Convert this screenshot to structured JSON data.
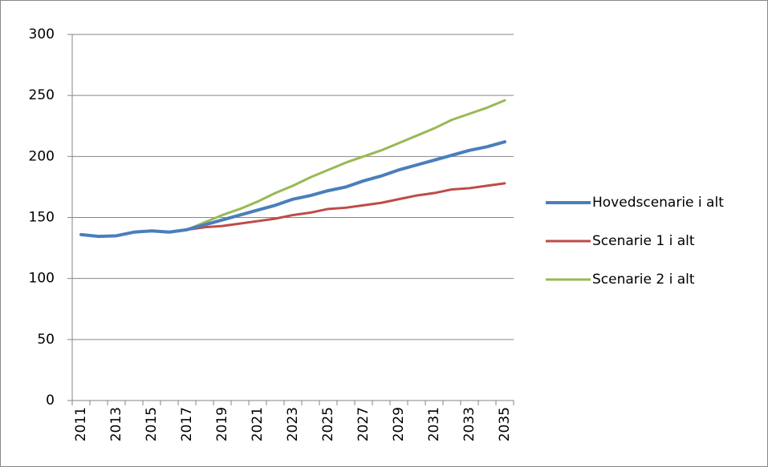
{
  "chart_data": {
    "type": "line",
    "categories": [
      "2011",
      null,
      "2013",
      null,
      "2015",
      null,
      "2017",
      null,
      "2019",
      null,
      "2021",
      null,
      "2023",
      null,
      "2025",
      null,
      "2027",
      null,
      "2029",
      null,
      "2031",
      null,
      "2033",
      null,
      "2035"
    ],
    "series": [
      {
        "name": "Hovedscenarie i alt",
        "color": "#4a7ebb",
        "values": [
          136,
          134.5,
          135,
          138,
          139,
          138,
          140,
          144,
          148,
          152,
          156,
          160,
          165,
          168,
          172,
          175,
          180,
          184,
          189,
          193,
          197,
          201,
          205,
          208,
          212
        ]
      },
      {
        "name": "Scenarie 1 i alt",
        "color": "#be4b48",
        "values": [
          null,
          null,
          null,
          null,
          null,
          null,
          140,
          142,
          143,
          145,
          147,
          149,
          152,
          154,
          157,
          158,
          160,
          162,
          165,
          168,
          170,
          173,
          174,
          176,
          178
        ]
      },
      {
        "name": "Scenarie 2 i alt",
        "color": "#98b954",
        "values": [
          null,
          null,
          null,
          null,
          null,
          null,
          140,
          146,
          152,
          157,
          163,
          170,
          176,
          183,
          189,
          195,
          200,
          205,
          211,
          217,
          223,
          230,
          235,
          240,
          246
        ]
      }
    ],
    "ylim": [
      0,
      300
    ],
    "yticks": [
      0,
      50,
      100,
      150,
      200,
      250,
      300
    ],
    "grid": true,
    "legend": "right"
  }
}
